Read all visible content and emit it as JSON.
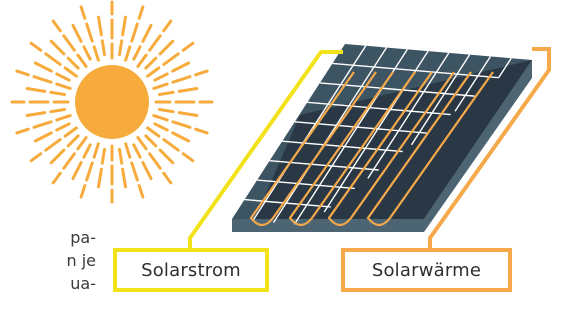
{
  "labels": {
    "solarstrom": "Solarstrom",
    "solarwaerme": "Solarwärme"
  },
  "side_text_fragments": [
    "pa-",
    "n je",
    "ua-"
  ],
  "colors": {
    "sun": "#f6ab3c",
    "panel_top": "#3d5463",
    "panel_edge": "#26343e",
    "panel_side": "#4d6573",
    "grid": "#ffffff",
    "heat_pipe": "#f5a94a",
    "strom_outline": "#f2e21c",
    "waerme_outline": "#f5a94a"
  },
  "icons": {
    "sun": "sun-icon",
    "panel": "hybrid-solar-panel"
  }
}
